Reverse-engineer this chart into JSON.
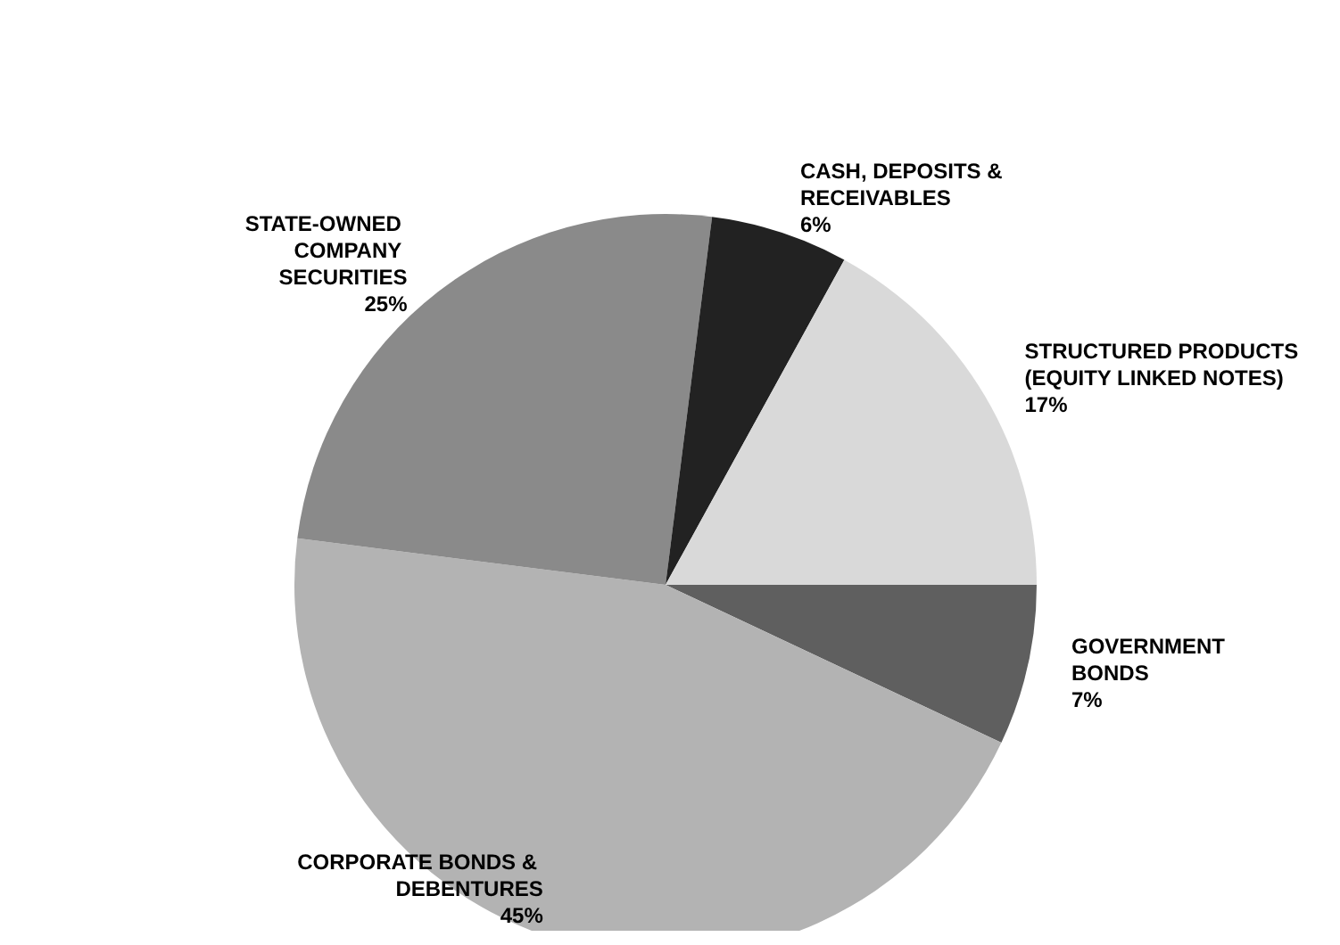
{
  "chart_data": {
    "type": "pie",
    "categories": [
      "GOVERNMENT BONDS",
      "CORPORATE BONDS & DEBENTURES",
      "STATE-OWNED COMPANY SECURITIES",
      "CASH, DEPOSITS & RECEIVABLES",
      "STRUCTURED PRODUCTS (EQUITY LINKED NOTES)"
    ],
    "values": [
      7,
      45,
      25,
      6,
      17
    ],
    "value_labels": [
      "7%",
      "45%",
      "25%",
      "6%",
      "17%"
    ],
    "colors": [
      "#5f5f5f",
      "#b3b3b3",
      "#8a8a8a",
      "#222222",
      "#d9d9d9"
    ],
    "legend": false
  }
}
